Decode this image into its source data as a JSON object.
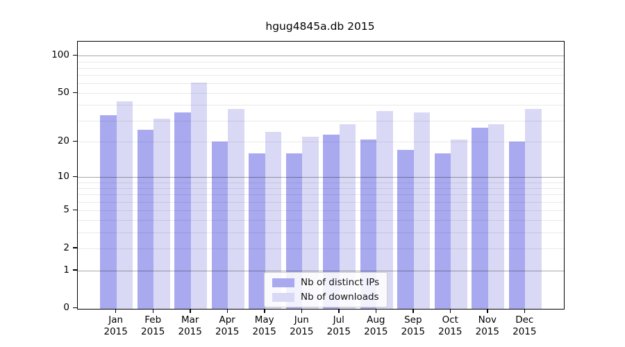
{
  "chart_data": {
    "type": "bar",
    "title": "hgug4845a.db 2015",
    "categories": [
      "Jan 2015",
      "Feb 2015",
      "Mar 2015",
      "Apr 2015",
      "May 2015",
      "Jun 2015",
      "Jul 2015",
      "Aug 2015",
      "Sep 2015",
      "Oct 2015",
      "Nov 2015",
      "Dec 2015"
    ],
    "series": [
      {
        "name": "Nb of distinct IPs",
        "color": "#a9a9f0",
        "values": [
          33,
          25,
          35,
          20,
          16,
          16,
          23,
          21,
          17,
          16,
          26,
          20
        ]
      },
      {
        "name": "Nb of downloads",
        "color": "#d9d9f6",
        "values": [
          43,
          31,
          61,
          37,
          24,
          22,
          28,
          36,
          35,
          21,
          28,
          37
        ]
      }
    ],
    "xlabel": "",
    "ylabel": "",
    "yscale": "log1p",
    "ylim": [
      0,
      130
    ],
    "ytick_values": [
      0,
      1,
      2,
      5,
      10,
      20,
      50,
      100
    ],
    "minor_grid_values": [
      1,
      2,
      3,
      4,
      5,
      6,
      7,
      8,
      9,
      10,
      20,
      30,
      40,
      50,
      60,
      70,
      80,
      90,
      100
    ],
    "major_grid_values": [
      1,
      10,
      100
    ],
    "grid": true,
    "legend_position": "lower center",
    "legend_labels": [
      "Nb of distinct IPs",
      "Nb of downloads"
    ]
  }
}
